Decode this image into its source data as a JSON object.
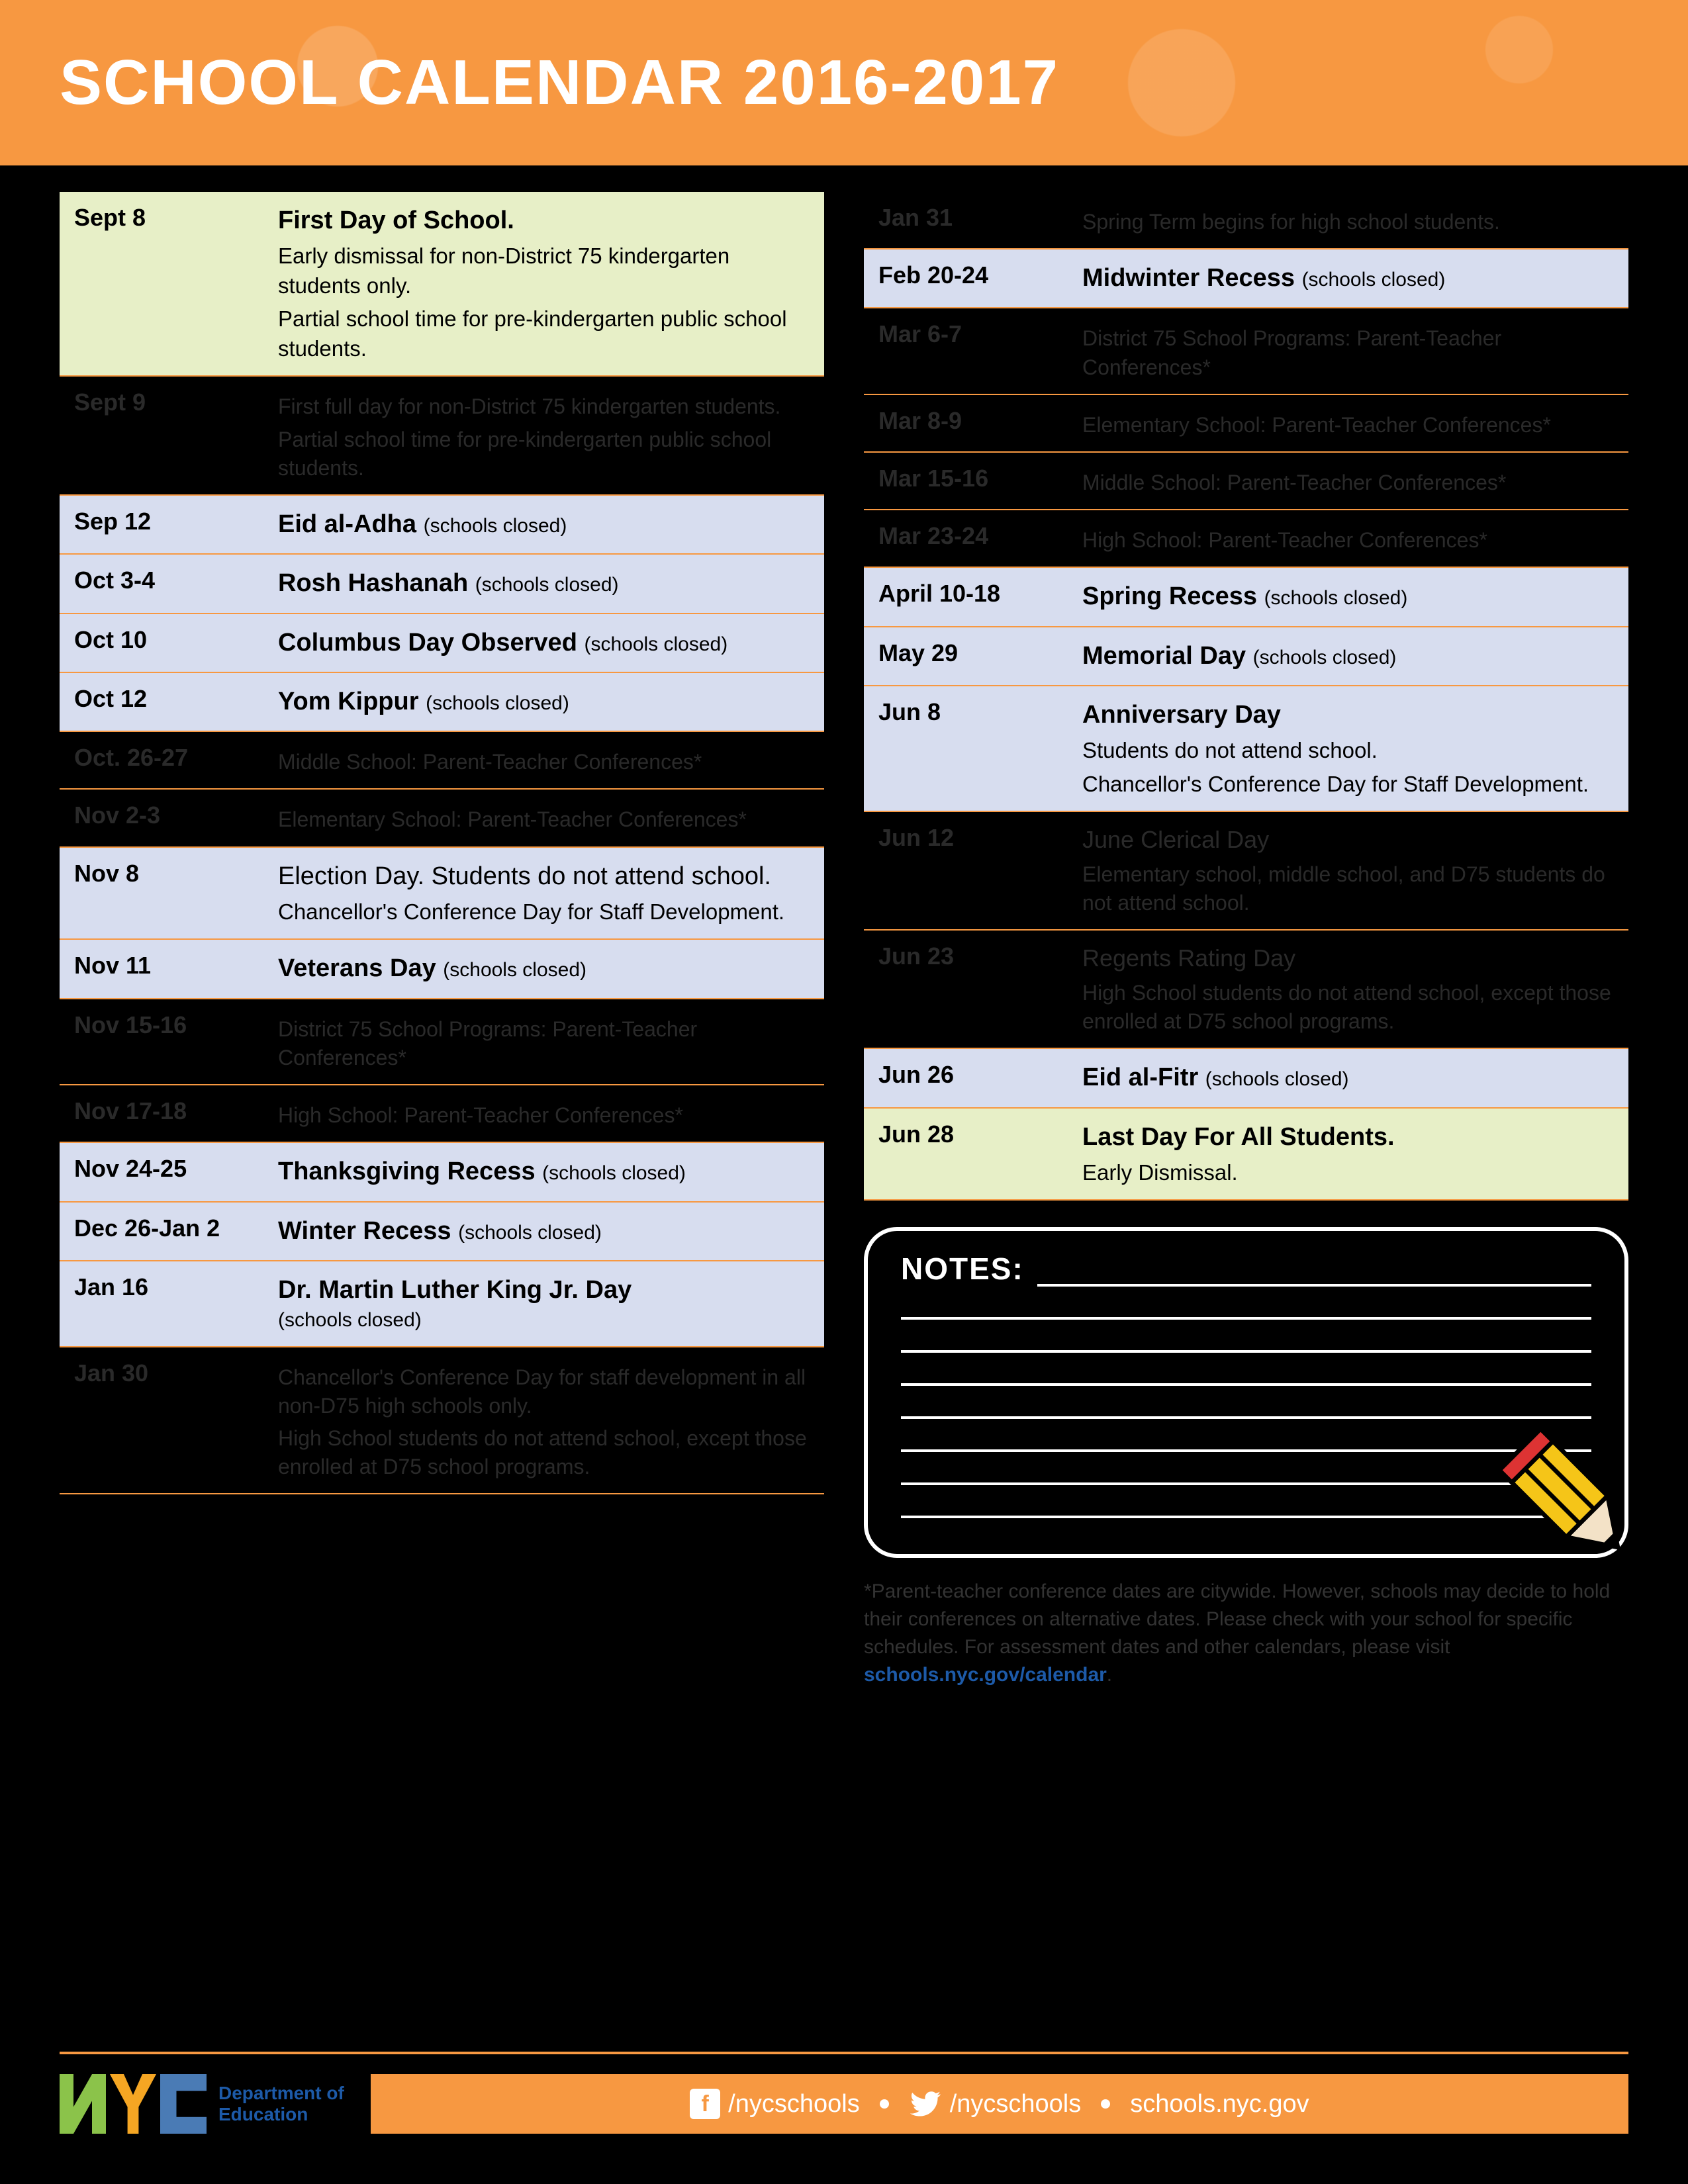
{
  "header": {
    "title": "SCHOOL CALENDAR 2016-2017"
  },
  "colors": {
    "accent": "#f79841",
    "row_green": "#e7efc7",
    "row_blue": "#d7ddef",
    "dark_text": "#2a2a2a",
    "link": "#1d5aa8"
  },
  "columns": [
    [
      {
        "date": "Sept 8",
        "bg": "green",
        "main": "First Day of School.",
        "subs": [
          "Early dismissal for non-District 75 kindergarten students only.",
          "Partial school time for pre-kindergarten public school students."
        ]
      },
      {
        "date": "Sept 9",
        "bg": "dark",
        "subs": [
          "First full day for non-District 75 kindergarten students.",
          "Partial school time for pre-kindergarten public school students."
        ]
      },
      {
        "date": "Sep 12",
        "bg": "blue",
        "main": "Eid al-Adha",
        "note": "(schools closed)"
      },
      {
        "date": "Oct 3-4",
        "bg": "blue",
        "main": "Rosh Hashanah",
        "note": "(schools closed)"
      },
      {
        "date": "Oct 10",
        "bg": "blue",
        "main": "Columbus Day Observed",
        "note": "(schools closed)"
      },
      {
        "date": "Oct 12",
        "bg": "blue",
        "main": "Yom Kippur",
        "note": "(schools closed)"
      },
      {
        "date": "Oct. 26-27",
        "bg": "dark",
        "subs": [
          "Middle School: Parent-Teacher Conferences*"
        ]
      },
      {
        "date": "Nov 2-3",
        "bg": "dark",
        "subs": [
          "Elementary School: Parent-Teacher Conferences*"
        ]
      },
      {
        "date": "Nov 8",
        "bg": "blue",
        "subs_bold": [
          "Election Day. Students do not attend school."
        ],
        "subs": [
          "Chancellor's Conference Day for Staff Development."
        ]
      },
      {
        "date": "Nov 11",
        "bg": "blue",
        "main": "Veterans Day",
        "note": "(schools closed)"
      },
      {
        "date": "Nov 15-16",
        "bg": "dark",
        "subs": [
          "District 75 School Programs: Parent-Teacher Conferences*"
        ]
      },
      {
        "date": "Nov 17-18",
        "bg": "dark",
        "subs": [
          "High School: Parent-Teacher Conferences*"
        ]
      },
      {
        "date": "Nov 24-25",
        "bg": "blue",
        "main": "Thanksgiving Recess",
        "note": "(schools closed)"
      },
      {
        "date": "Dec 26-Jan 2",
        "bg": "blue",
        "main": "Winter Recess",
        "note": "(schools closed)"
      },
      {
        "date": "Jan 16",
        "bg": "blue",
        "main": "Dr. Martin Luther King Jr. Day",
        "note_below": "(schools closed)"
      },
      {
        "date": "Jan 30",
        "bg": "dark",
        "subs": [
          "Chancellor's Conference Day for staff development in all non-D75 high schools only.",
          "High School students do not attend school, except those enrolled at D75 school programs."
        ]
      }
    ],
    [
      {
        "date": "Jan 31",
        "bg": "dark",
        "subs": [
          "Spring Term begins for high school students."
        ]
      },
      {
        "date": "Feb 20-24",
        "bg": "blue",
        "main": "Midwinter Recess",
        "note": "(schools closed)"
      },
      {
        "date": "Mar 6-7",
        "bg": "dark",
        "subs": [
          "District 75 School Programs: Parent-Teacher Conferences*"
        ]
      },
      {
        "date": "Mar 8-9",
        "bg": "dark",
        "subs": [
          "Elementary School: Parent-Teacher Conferences*"
        ]
      },
      {
        "date": "Mar 15-16",
        "bg": "dark",
        "subs": [
          "Middle School: Parent-Teacher Conferences*"
        ]
      },
      {
        "date": "Mar 23-24",
        "bg": "dark",
        "subs": [
          "High  School: Parent-Teacher Conferences*"
        ]
      },
      {
        "date": "April 10-18",
        "bg": "blue",
        "main": "Spring Recess",
        "note": "(schools closed)"
      },
      {
        "date": "May 29",
        "bg": "blue",
        "main": "Memorial Day",
        "note": "(schools closed)"
      },
      {
        "date": "Jun 8",
        "bg": "blue",
        "main": "Anniversary Day",
        "subs": [
          "Students do not attend school.",
          "Chancellor's Conference Day for Staff Development."
        ]
      },
      {
        "date": "Jun 12",
        "bg": "dark",
        "main_dark": "June Clerical Day",
        "subs": [
          "Elementary school, middle school, and D75 students do not attend school."
        ]
      },
      {
        "date": "Jun 23",
        "bg": "dark",
        "main_dark": "Regents Rating Day",
        "subs": [
          "High School students do not attend school, except those enrolled at D75 school programs."
        ]
      },
      {
        "date": "Jun 26",
        "bg": "blue",
        "main": "Eid al-Fitr ",
        "note": "(schools closed)"
      },
      {
        "date": "Jun 28",
        "bg": "green",
        "main": "Last Day For All Students.",
        "subs": [
          "Early Dismissal."
        ]
      }
    ]
  ],
  "notes": {
    "label": "NOTES:",
    "line_count": 7
  },
  "footnote": {
    "text": "*Parent-teacher conference dates are citywide. However, schools may decide to hold their conferences on alternative dates. Please check with your school for specific schedules. For assessment dates and other calendars, please visit ",
    "link_text": "schools.nyc.gov/calendar",
    "suffix": "."
  },
  "footer": {
    "dept_line1": "Department of",
    "dept_line2": "Education",
    "facebook": "/nycschools",
    "twitter": "/nycschools",
    "site": "schools.nyc.gov"
  }
}
